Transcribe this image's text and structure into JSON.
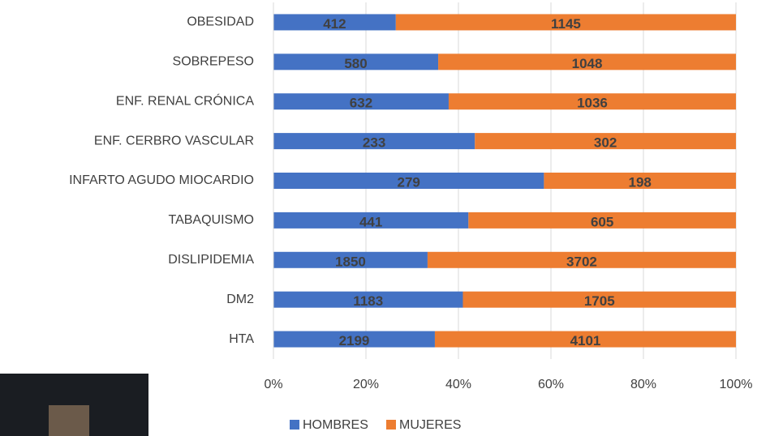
{
  "chart_data": {
    "type": "bar",
    "orientation": "horizontal",
    "stacking": "percent",
    "categories": [
      "OBESIDAD",
      "SOBREPESO",
      "ENF. RENAL CRÓNICA",
      "ENF. CERBRO VASCULAR",
      "INFARTO AGUDO MIOCARDIO",
      "TABAQUISMO",
      "DISLIPIDEMIA",
      "DM2",
      "HTA"
    ],
    "series": [
      {
        "name": "HOMBRES",
        "color": "#4472c4",
        "values": [
          412,
          580,
          632,
          233,
          279,
          441,
          1850,
          1183,
          2199
        ]
      },
      {
        "name": "MUJERES",
        "color": "#ed7d31",
        "values": [
          1145,
          1048,
          1036,
          302,
          198,
          605,
          3702,
          1705,
          4101
        ]
      }
    ],
    "xlim": [
      0,
      100
    ],
    "xticks": [
      {
        "value": 0,
        "label": "0%"
      },
      {
        "value": 20,
        "label": "20%"
      },
      {
        "value": 40,
        "label": "40%"
      },
      {
        "value": 60,
        "label": "60%"
      },
      {
        "value": 80,
        "label": "80%"
      },
      {
        "value": 100,
        "label": "100%"
      }
    ],
    "grid": true,
    "legend": "bottom"
  }
}
